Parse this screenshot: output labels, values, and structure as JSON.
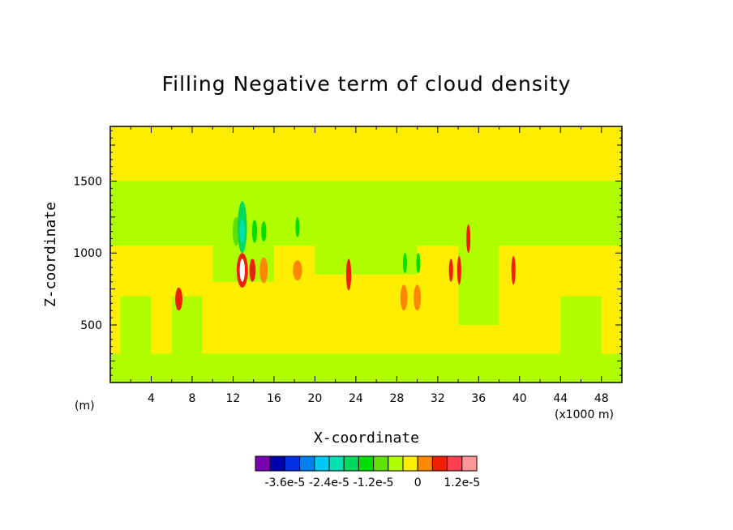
{
  "chart_data": {
    "type": "heatmap",
    "title": "Filling Negative term of cloud density",
    "xlabel": "X-coordinate",
    "ylabel": "Z-coordinate",
    "x_unit_left": "(m)",
    "x_unit_right": "(x1000 m)",
    "xlim": [
      0,
      50
    ],
    "ylim": [
      100,
      1880
    ],
    "x_ticks": [
      4,
      8,
      12,
      16,
      20,
      24,
      28,
      32,
      36,
      40,
      44,
      48
    ],
    "x_tick_labels": [
      "4",
      "8",
      "12",
      "16",
      "20",
      "24",
      "28",
      "32",
      "36",
      "40",
      "44",
      "48"
    ],
    "y_ticks": [
      500,
      1000,
      1500
    ],
    "y_tick_labels": [
      "500",
      "1000",
      "1500"
    ],
    "colorbar": {
      "colors": [
        "#7a00b0",
        "#0000b0",
        "#0030e0",
        "#0080f0",
        "#00c8f0",
        "#00e0b0",
        "#00d860",
        "#00e000",
        "#60e000",
        "#b0ff00",
        "#ffee00",
        "#ff8800",
        "#ee2000",
        "#ff4050",
        "#ff9898"
      ],
      "labels": [
        "-3.6e-5",
        "-2.4e-5",
        "-1.2e-5",
        "0",
        "1.2e-5"
      ]
    },
    "layers": [
      {
        "x0": 0,
        "x1": 50,
        "z0": 100,
        "z1": 1880,
        "color": "#ffee00"
      },
      {
        "x0": 0,
        "x1": 50,
        "z0": 1050,
        "z1": 1500,
        "color": "#b0ff00"
      },
      {
        "x0": 0,
        "x1": 50,
        "z0": 100,
        "z1": 300,
        "color": "#b0ff00"
      },
      {
        "x0": 1,
        "x1": 4,
        "z0": 300,
        "z1": 700,
        "color": "#b0ff00"
      },
      {
        "x0": 6,
        "x1": 9,
        "z0": 300,
        "z1": 700,
        "color": "#b0ff00"
      },
      {
        "x0": 10,
        "x1": 16,
        "z0": 800,
        "z1": 1050,
        "color": "#b0ff00"
      },
      {
        "x0": 20,
        "x1": 30,
        "z0": 850,
        "z1": 1050,
        "color": "#b0ff00"
      },
      {
        "x0": 34,
        "x1": 38,
        "z0": 500,
        "z1": 1050,
        "color": "#b0ff00"
      },
      {
        "x0": 44,
        "x1": 48,
        "z0": 300,
        "z1": 700,
        "color": "#b0ff00"
      }
    ],
    "blobs": [
      {
        "x": 6.7,
        "z": 680,
        "rx": 0.35,
        "rz": 80,
        "color": "#ee2000"
      },
      {
        "x": 12.3,
        "z": 1150,
        "rx": 0.35,
        "rz": 100,
        "color": "#60e000"
      },
      {
        "x": 12.9,
        "z": 1180,
        "rx": 0.45,
        "rz": 180,
        "color": "#00d860"
      },
      {
        "x": 12.9,
        "z": 1150,
        "rx": 0.25,
        "rz": 80,
        "color": "#00e0b0"
      },
      {
        "x": 12.9,
        "z": 880,
        "rx": 0.55,
        "rz": 120,
        "color": "#ee2000"
      },
      {
        "x": 12.9,
        "z": 880,
        "rx": 0.25,
        "rz": 80,
        "color": "#ffffff"
      },
      {
        "x": 13.9,
        "z": 880,
        "rx": 0.3,
        "rz": 80,
        "color": "#ee2000"
      },
      {
        "x": 14.1,
        "z": 1150,
        "rx": 0.25,
        "rz": 80,
        "color": "#00e000"
      },
      {
        "x": 15.0,
        "z": 880,
        "rx": 0.4,
        "rz": 90,
        "color": "#ff8800"
      },
      {
        "x": 15.0,
        "z": 1150,
        "rx": 0.25,
        "rz": 70,
        "color": "#00e000"
      },
      {
        "x": 18.3,
        "z": 880,
        "rx": 0.45,
        "rz": 70,
        "color": "#ff8800"
      },
      {
        "x": 18.3,
        "z": 1180,
        "rx": 0.2,
        "rz": 70,
        "color": "#00e000"
      },
      {
        "x": 23.3,
        "z": 850,
        "rx": 0.25,
        "rz": 110,
        "color": "#ee2000"
      },
      {
        "x": 28.7,
        "z": 690,
        "rx": 0.35,
        "rz": 90,
        "color": "#ff8800"
      },
      {
        "x": 30.0,
        "z": 690,
        "rx": 0.35,
        "rz": 90,
        "color": "#ff8800"
      },
      {
        "x": 28.8,
        "z": 930,
        "rx": 0.2,
        "rz": 70,
        "color": "#00e000"
      },
      {
        "x": 30.1,
        "z": 930,
        "rx": 0.2,
        "rz": 70,
        "color": "#00e000"
      },
      {
        "x": 33.3,
        "z": 880,
        "rx": 0.2,
        "rz": 80,
        "color": "#ee2000"
      },
      {
        "x": 34.1,
        "z": 880,
        "rx": 0.2,
        "rz": 100,
        "color": "#ee2000"
      },
      {
        "x": 35.0,
        "z": 1100,
        "rx": 0.2,
        "rz": 100,
        "color": "#ee2000"
      },
      {
        "x": 39.4,
        "z": 880,
        "rx": 0.2,
        "rz": 100,
        "color": "#ee2000"
      }
    ]
  }
}
